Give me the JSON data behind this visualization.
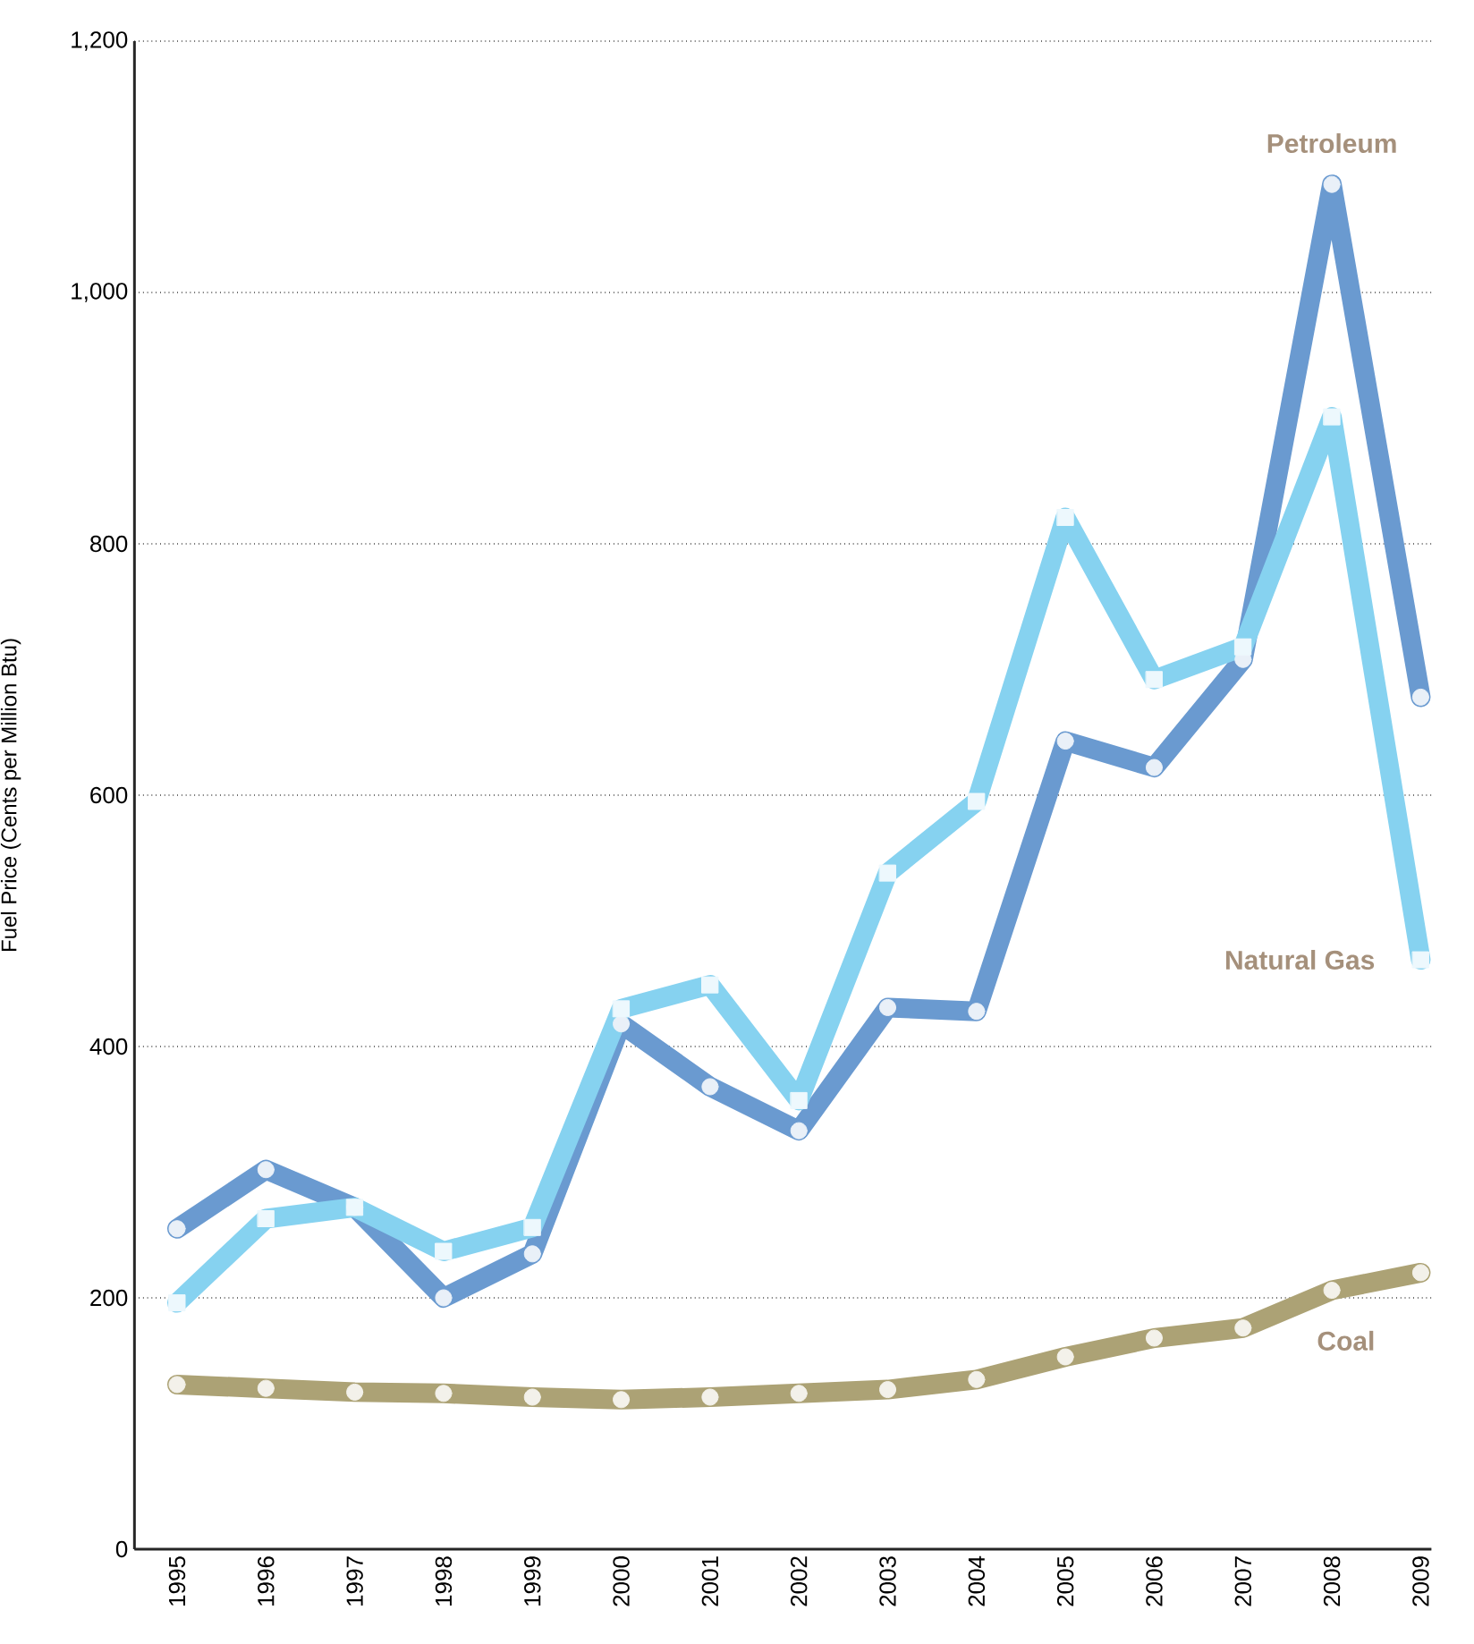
{
  "chart_data": {
    "type": "line",
    "ylabel": "Fuel Price (Cents per Million Btu)",
    "categories": [
      "1995",
      "1996",
      "1997",
      "1998",
      "1999",
      "2000",
      "2001",
      "2002",
      "2003",
      "2004",
      "2005",
      "2006",
      "2007",
      "2008",
      "2009"
    ],
    "series": [
      {
        "name": "Petroleum",
        "color": "#6a9ad0",
        "marker": "circle",
        "values": [
          255,
          302,
          272,
          200,
          235,
          418,
          368,
          333,
          431,
          428,
          643,
          622,
          708,
          1086,
          678
        ]
      },
      {
        "name": "Natural Gas",
        "color": "#86d2f0",
        "marker": "square",
        "values": [
          196,
          263,
          272,
          237,
          256,
          430,
          449,
          357,
          538,
          595,
          821,
          692,
          718,
          901,
          469
        ]
      },
      {
        "name": "Coal",
        "color": "#aca275",
        "marker": "circle",
        "values": [
          131,
          128,
          125,
          124,
          121,
          119,
          121,
          124,
          127,
          135,
          153,
          168,
          176,
          206,
          220
        ]
      }
    ],
    "ylim": [
      0,
      1200
    ],
    "yticks": [
      0,
      200,
      400,
      600,
      800,
      {
        "value": 1000,
        "label": "1,000"
      },
      {
        "value": 1200,
        "label": "1,200"
      }
    ],
    "grid": "y",
    "line_style": "solid"
  }
}
